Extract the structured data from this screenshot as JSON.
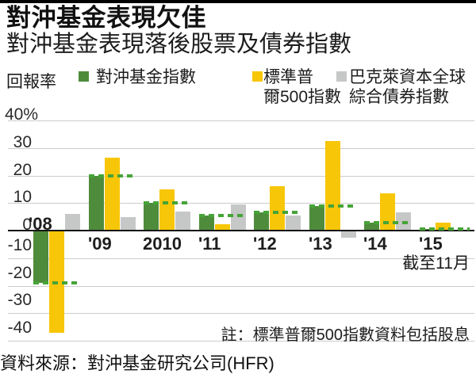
{
  "header": {
    "title": "對沖基金表現欠佳",
    "subtitle": "對沖基金表現落後股票及債券指數"
  },
  "legend": {
    "axis_label": "回報率",
    "items": [
      {
        "name": "對沖基金指數",
        "lines": [
          "對沖基金指數",
          ""
        ],
        "color": "#4e8c3c"
      },
      {
        "name": "標準普爾500指數",
        "lines": [
          "標準普",
          "爾500指數"
        ],
        "color": "#f7c608"
      },
      {
        "name": "巴克萊資本全球綜合債券指數",
        "lines": [
          "巴克萊資本全球",
          "綜合債券指數"
        ],
        "color": "#c6c7c7"
      }
    ]
  },
  "chart_data": {
    "type": "bar",
    "unit": "%",
    "categories": [
      "'08",
      "'09",
      "2010",
      "'11",
      "'12",
      "'13",
      "'14",
      "'15"
    ],
    "series": [
      {
        "name": "對沖基金指數",
        "color": "#4e8c3c",
        "values": [
          -19,
          20,
          10,
          5.5,
          6.5,
          9,
          3,
          0.5
        ]
      },
      {
        "name": "標準普爾500指數",
        "color": "#f7c608",
        "values": [
          -37,
          26.5,
          15,
          2.3,
          16,
          32.5,
          13.5,
          3
        ]
      },
      {
        "name": "巴克萊資本全球綜合債券指數",
        "color": "#c6c7c7",
        "values": [
          6,
          5,
          7,
          9.5,
          5.5,
          -2.5,
          6.5,
          0
        ]
      }
    ],
    "yticks": [
      40,
      30,
      20,
      10,
      0,
      -10,
      -20,
      -30,
      -40
    ],
    "ytick_labels": [
      "40%",
      "30",
      "20",
      "10",
      "0",
      "-10",
      "-20",
      "-30",
      "-40"
    ],
    "ylim": [
      -42,
      44
    ],
    "grid": true,
    "legend_position": "top",
    "annotation": "截至11月",
    "title": "對沖基金表現欠佳",
    "ylabel": "回報率"
  },
  "colors": {
    "hedge_bar": "#4e8c3c",
    "hedge_dash": "#45a437",
    "sp500_bar": "#f7c608",
    "bond_bar": "#c6c7c7",
    "gridline": "#cccccc",
    "zero_line": "#151515",
    "top_rule": "#000000"
  },
  "footer": {
    "note": "註：標準普爾500指數資料包括股息",
    "source": "資料來源：對沖基金研究公司(HFR)"
  }
}
